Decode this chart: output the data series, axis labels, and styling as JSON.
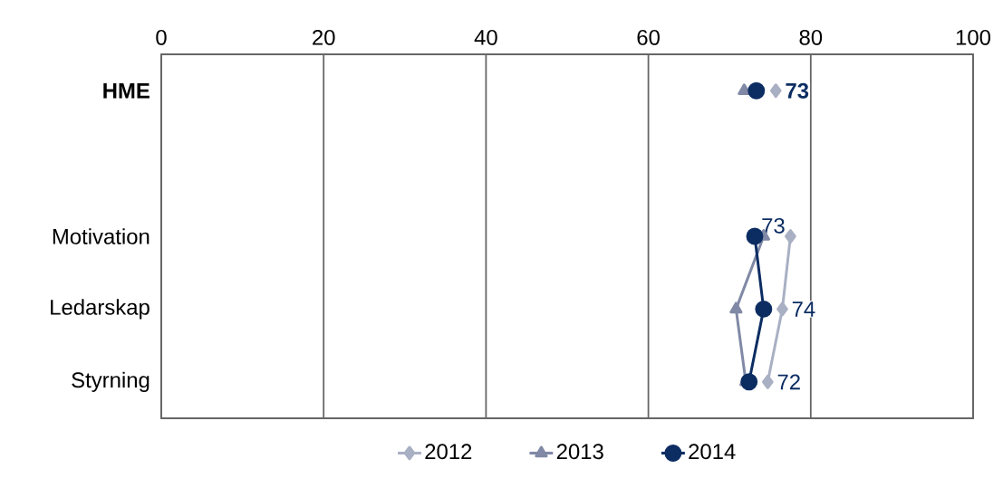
{
  "chart_data": {
    "type": "line",
    "orientation": "horizontal",
    "categories": [
      "**HME**",
      null,
      "Motivation",
      "Ledarskap",
      "Styrning"
    ],
    "xlim": [
      0,
      100
    ],
    "xticks": [
      0,
      20,
      40,
      60,
      80,
      100
    ],
    "grid": "x",
    "legend": "bottom",
    "series": [
      {
        "name": "2012",
        "color": "#a9b0c4",
        "marker": "diamond",
        "values": [
          75.7,
          null,
          77.5,
          76.5,
          74.7
        ]
      },
      {
        "name": "2013",
        "color": "#8089a5",
        "marker": "triangle",
        "values": [
          71.8,
          null,
          74.2,
          70.8,
          72.0
        ]
      },
      {
        "name": "2014",
        "color": "#0c2d62",
        "marker": "circle",
        "values": [
          73.3,
          null,
          73.1,
          74.2,
          72.4
        ],
        "value_labels": [
          "**73**",
          null,
          "73",
          "74",
          "72"
        ]
      }
    ]
  }
}
